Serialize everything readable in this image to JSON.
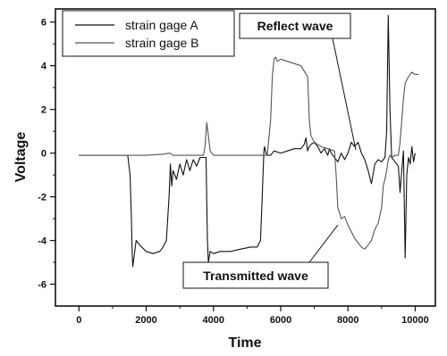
{
  "chart_data": {
    "type": "line",
    "xlabel": "Time",
    "ylabel": "Voltage",
    "xlim": [
      -700,
      10600
    ],
    "ylim": [
      -7,
      6.6
    ],
    "x_ticks": [
      0,
      2000,
      4000,
      6000,
      8000,
      10000
    ],
    "y_ticks": [
      -6,
      -4,
      -2,
      0,
      2,
      4,
      6
    ],
    "grid": false,
    "legend_position": "top-left",
    "series": [
      {
        "name": "strain gage A",
        "color": "#111111",
        "x": [
          0,
          1450,
          1520,
          1560,
          1580,
          1600,
          1700,
          1800,
          2000,
          2200,
          2400,
          2500,
          2600,
          2680,
          2720,
          2760,
          2800,
          2900,
          3000,
          3100,
          3200,
          3300,
          3400,
          3500,
          3600,
          3700,
          3780,
          3800,
          3820,
          3850,
          3900,
          4000,
          4200,
          4500,
          4800,
          5100,
          5300,
          5400,
          5450,
          5500,
          5520,
          5560,
          5600,
          5700,
          5800,
          6000,
          6200,
          6400,
          6600,
          6700,
          6750,
          6800,
          6820,
          6850,
          6900,
          7000,
          7100,
          7200,
          7300,
          7400,
          7450,
          7500,
          7600,
          7700,
          7800,
          7900,
          8000,
          8100,
          8200,
          8300,
          8400,
          8500,
          8600,
          8700,
          8800,
          8900,
          9000,
          9100,
          9150,
          9200,
          9250,
          9300,
          9400,
          9500,
          9550,
          9600,
          9650,
          9700,
          9750,
          9800,
          9850,
          9900,
          9950,
          10000
        ],
        "y": [
          -0.1,
          -0.1,
          -1.0,
          -3.0,
          -4.5,
          -5.2,
          -4.0,
          -4.2,
          -4.5,
          -4.6,
          -4.5,
          -4.3,
          -4.0,
          -2.0,
          -0.5,
          -1.5,
          -0.8,
          -1.2,
          -0.5,
          -1.0,
          -0.3,
          -0.8,
          -0.3,
          -0.6,
          -0.2,
          -0.2,
          -0.2,
          -2.0,
          -4.0,
          -5.0,
          -4.5,
          -4.6,
          -4.5,
          -4.5,
          -4.4,
          -4.3,
          -4.3,
          -4.0,
          -2.0,
          0.1,
          0.3,
          0.0,
          -0.1,
          -0.1,
          0.1,
          0.0,
          0.1,
          0.2,
          0.2,
          0.4,
          0.7,
          0.1,
          0.2,
          0.3,
          0.4,
          0.5,
          0.3,
          0.0,
          0.2,
          -0.1,
          0.2,
          0.0,
          -0.2,
          -0.4,
          0.0,
          -0.3,
          0.0,
          0.5,
          0.3,
          0.5,
          0.0,
          -0.3,
          -0.8,
          -1.4,
          -0.5,
          -0.3,
          -0.4,
          -0.2,
          1.0,
          6.3,
          2.0,
          -0.2,
          -0.4,
          -0.6,
          -1.8,
          -0.8,
          0.1,
          -4.8,
          -1.0,
          -0.2,
          -0.5,
          0.3,
          -0.4,
          0.0
        ]
      },
      {
        "name": "strain gage B",
        "color": "#555555",
        "x": [
          0,
          1500,
          2000,
          2500,
          2700,
          2800,
          3000,
          3300,
          3600,
          3700,
          3750,
          3800,
          3850,
          3900,
          4000,
          4500,
          5000,
          5400,
          5600,
          5700,
          5750,
          5800,
          5850,
          5900,
          6000,
          6200,
          6400,
          6600,
          6800,
          6850,
          6900,
          7000,
          7200,
          7400,
          7600,
          7650,
          7700,
          7800,
          7900,
          8000,
          8100,
          8200,
          8300,
          8400,
          8500,
          8600,
          8700,
          8800,
          8900,
          9000,
          9050,
          9100,
          9150,
          9200,
          9250,
          9300,
          9400,
          9500,
          9550,
          9600,
          9650,
          9700,
          9800,
          9900,
          10000,
          10100
        ],
        "y": [
          -0.1,
          -0.1,
          -0.1,
          -0.05,
          0.0,
          -0.1,
          -0.1,
          -0.1,
          -0.1,
          -0.1,
          0.3,
          1.4,
          0.8,
          0.1,
          -0.1,
          -0.1,
          -0.1,
          -0.1,
          -0.1,
          1.5,
          3.5,
          4.3,
          4.4,
          4.2,
          4.3,
          4.2,
          4.1,
          4.0,
          3.5,
          1.5,
          0.8,
          0.5,
          0.3,
          0.2,
          0.1,
          -1.0,
          -2.5,
          -3.0,
          -2.9,
          -3.3,
          -3.6,
          -3.9,
          -4.1,
          -4.3,
          -4.4,
          -4.2,
          -4.0,
          -3.5,
          -3.2,
          -2.5,
          -1.5,
          -1.2,
          -0.8,
          -0.3,
          -0.1,
          -0.2,
          -0.1,
          -0.1,
          0.5,
          1.5,
          2.5,
          3.2,
          3.5,
          3.7,
          3.6,
          3.6
        ]
      }
    ],
    "annotations": [
      {
        "text": "Reflect wave"
      },
      {
        "text": "Transmitted wave"
      }
    ]
  }
}
